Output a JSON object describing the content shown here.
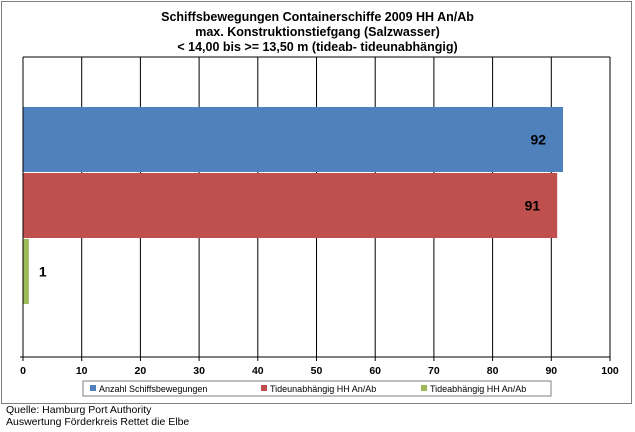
{
  "chart_data": {
    "type": "bar",
    "orientation": "horizontal",
    "title_lines": [
      "Schiffsbewegungen  Containerschiffe  2009 HH An/Ab",
      "max. Konstruktionstiefgang  (Salzwasser)",
      "< 14,00 bis >= 13,50 m (tideab-  tideunabhängig)"
    ],
    "series": [
      {
        "name": "Anzahl Schiffsbewegungen",
        "values": [
          92
        ],
        "color": "#4f81bd"
      },
      {
        "name": "Tideunabhängig HH An/Ab",
        "values": [
          91
        ],
        "color": "#c0504d"
      },
      {
        "name": "Tideabhängig HH An/Ab",
        "values": [
          1
        ],
        "color": "#9bbb59"
      }
    ],
    "xlim": [
      0,
      100
    ],
    "xticks": [
      0,
      10,
      20,
      30,
      40,
      50,
      60,
      70,
      80,
      90,
      100
    ],
    "grid": true,
    "legend_position": "bottom"
  },
  "source_lines": [
    "Quelle: Hamburg Port Authority",
    "Auswertung Förderkreis Rettet die Elbe"
  ]
}
